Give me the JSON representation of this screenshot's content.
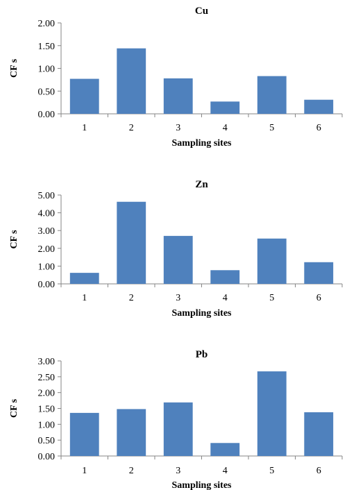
{
  "chart_data": [
    {
      "type": "bar",
      "title": "Cu",
      "xlabel": "Sampling sites",
      "ylabel": "CF s",
      "categories": [
        "1",
        "2",
        "3",
        "4",
        "5",
        "6"
      ],
      "values": [
        0.77,
        1.44,
        0.78,
        0.27,
        0.83,
        0.31
      ],
      "ylim": [
        0,
        2
      ],
      "yticks": [
        "0.00",
        "0.50",
        "1.00",
        "1.50",
        "2.00"
      ],
      "grid": false,
      "color": "#4f81bd"
    },
    {
      "type": "bar",
      "title": "Zn",
      "xlabel": "Sampling sites",
      "ylabel": "CF s",
      "categories": [
        "1",
        "2",
        "3",
        "4",
        "5",
        "6"
      ],
      "values": [
        0.62,
        4.62,
        2.7,
        0.77,
        2.55,
        1.22
      ],
      "ylim": [
        0,
        5
      ],
      "yticks": [
        "0.00",
        "1.00",
        "2.00",
        "3.00",
        "4.00",
        "5.00"
      ],
      "grid": false,
      "color": "#4f81bd"
    },
    {
      "type": "bar",
      "title": "Pb",
      "xlabel": "Sampling sites",
      "ylabel": "CF s",
      "categories": [
        "1",
        "2",
        "3",
        "4",
        "5",
        "6"
      ],
      "values": [
        1.36,
        1.48,
        1.69,
        0.41,
        2.67,
        1.38
      ],
      "ylim": [
        0,
        3
      ],
      "yticks": [
        "0.00",
        "0.50",
        "1.00",
        "1.50",
        "2.00",
        "2.50",
        "3.00"
      ],
      "grid": false,
      "color": "#4f81bd"
    }
  ]
}
